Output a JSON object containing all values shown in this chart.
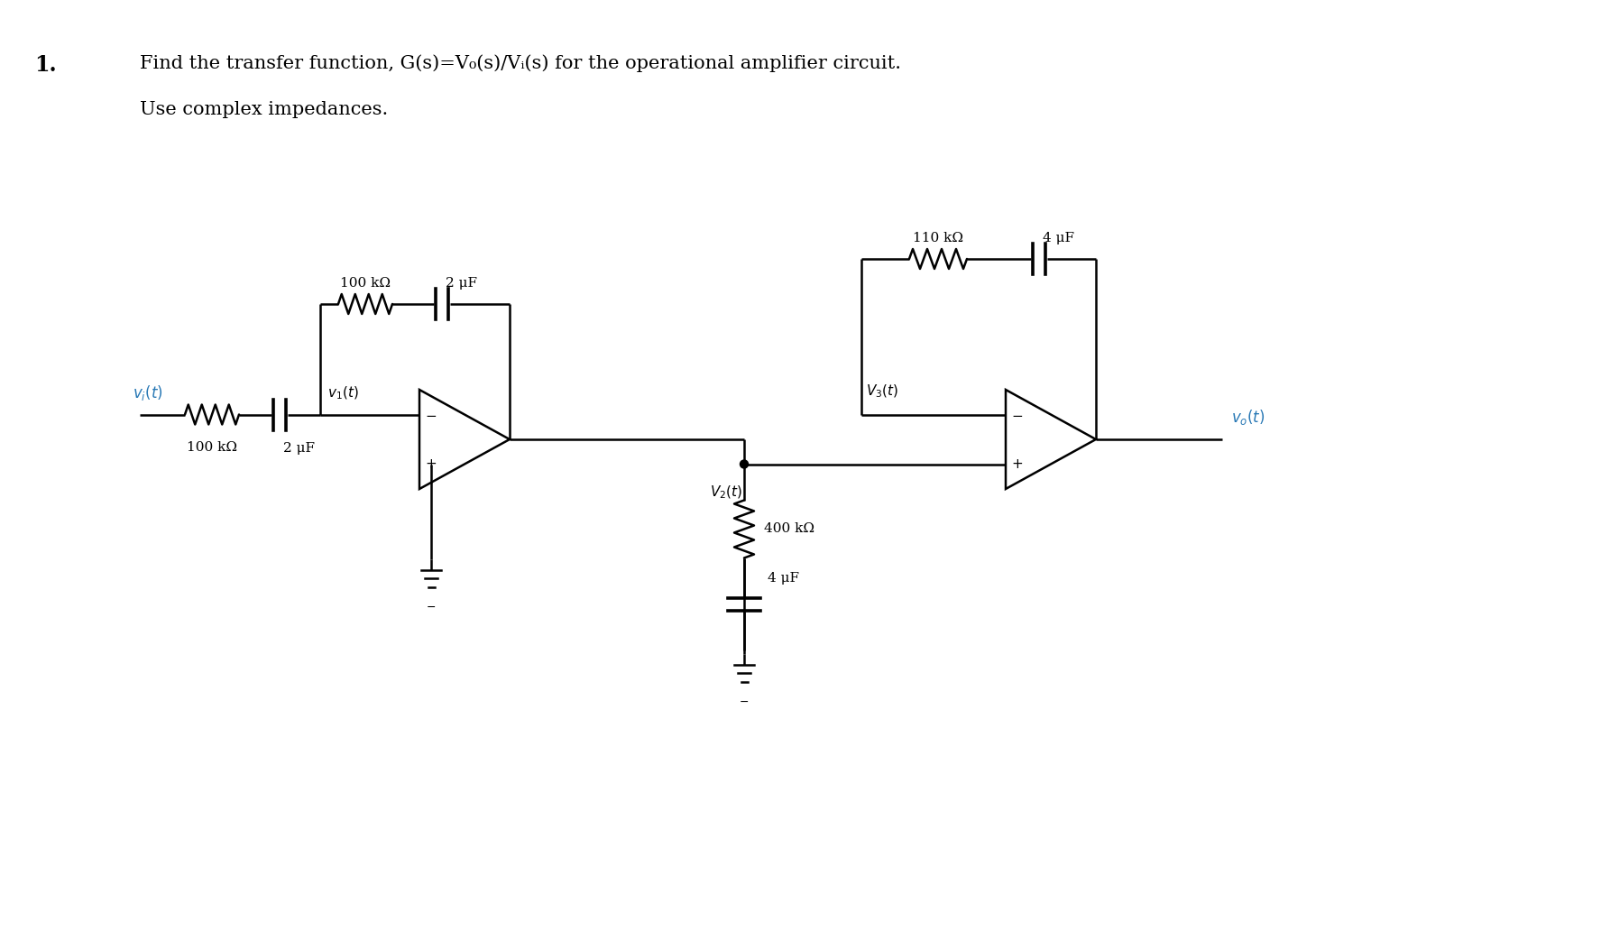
{
  "bg_color": "#ffffff",
  "line_color": "#000000",
  "blue_color": "#2878b5",
  "lw": 1.8,
  "title_num": "1.",
  "title_text": "Find the transfer function, G(s)=V₀(s)/Vᵢ(s) for the operational amplifier circuit.",
  "subtitle": "Use complex impedances.",
  "label_vi": "vᵢ(t)",
  "label_v1": "v₁(t)",
  "label_v2": "V₂(t)",
  "label_v3": "V₃(t)",
  "label_vo": "v₀(t)",
  "label_r_in": "100 kΩ",
  "label_c_in": "2 μF",
  "label_r_fb1": "100 kΩ",
  "label_c_fb1": "2 μF",
  "label_r_fb2": "110 kΩ",
  "label_c_fb2": "4 μF",
  "label_r_bot": "400 kΩ",
  "label_c_bot": "4 μF",
  "fig_w": 17.75,
  "fig_h": 10.42,
  "dpi": 100
}
